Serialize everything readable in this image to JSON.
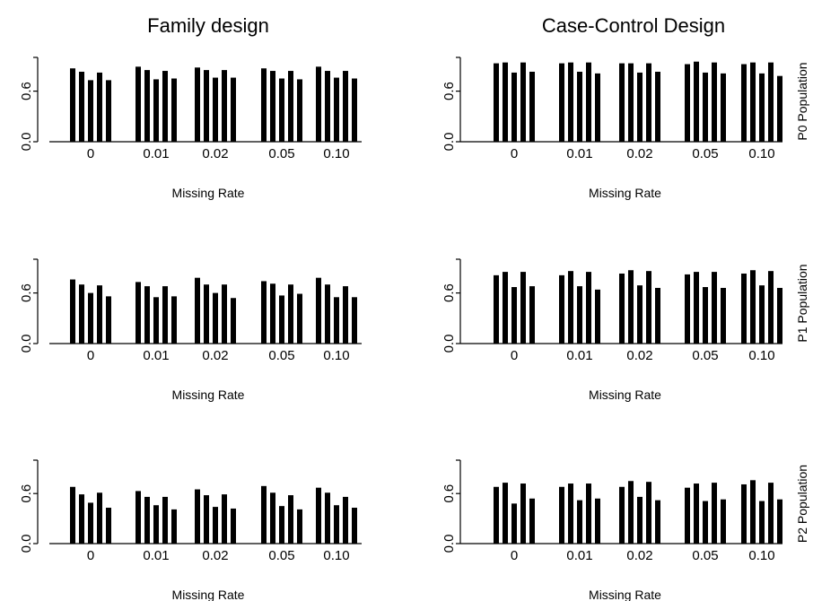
{
  "figure": {
    "col_titles": [
      "Family design",
      "Case-Control Design"
    ],
    "row_labels": [
      "P0 Population",
      "P1 Population",
      "P2 Population"
    ]
  },
  "chart_data": [
    {
      "type": "bar",
      "design": "Family design",
      "population": "P0 Population",
      "categories": [
        "0",
        "0.01",
        "0.02",
        "0.05",
        "0.10"
      ],
      "xlabel": "Missing Rate",
      "ylabel": "",
      "yticks": [
        "0.0",
        "0.6"
      ],
      "ylim": [
        0,
        1.0
      ],
      "values": [
        [
          0.87,
          0.83,
          0.73,
          0.82,
          0.73
        ],
        [
          0.89,
          0.85,
          0.74,
          0.84,
          0.75
        ],
        [
          0.88,
          0.85,
          0.76,
          0.85,
          0.76
        ],
        [
          0.87,
          0.84,
          0.75,
          0.84,
          0.74
        ],
        [
          0.89,
          0.84,
          0.76,
          0.84,
          0.75
        ]
      ]
    },
    {
      "type": "bar",
      "design": "Case-Control Design",
      "population": "P0 Population",
      "categories": [
        "0",
        "0.01",
        "0.02",
        "0.05",
        "0.10"
      ],
      "xlabel": "Missing Rate",
      "ylabel": "",
      "yticks": [
        "0.0",
        "0.6"
      ],
      "ylim": [
        0,
        1.0
      ],
      "values": [
        [
          0.93,
          0.94,
          0.82,
          0.94,
          0.83
        ],
        [
          0.93,
          0.94,
          0.83,
          0.94,
          0.81
        ],
        [
          0.93,
          0.93,
          0.82,
          0.93,
          0.83
        ],
        [
          0.92,
          0.95,
          0.82,
          0.94,
          0.81
        ],
        [
          0.92,
          0.94,
          0.81,
          0.94,
          0.78
        ]
      ]
    },
    {
      "type": "bar",
      "design": "Family design",
      "population": "P1 Population",
      "categories": [
        "0",
        "0.01",
        "0.02",
        "0.05",
        "0.10"
      ],
      "xlabel": "Missing Rate",
      "ylabel": "",
      "yticks": [
        "0.0",
        "0.6"
      ],
      "ylim": [
        0,
        1.0
      ],
      "values": [
        [
          0.76,
          0.7,
          0.6,
          0.69,
          0.56
        ],
        [
          0.73,
          0.68,
          0.55,
          0.68,
          0.56
        ],
        [
          0.78,
          0.7,
          0.6,
          0.7,
          0.54
        ],
        [
          0.74,
          0.71,
          0.57,
          0.7,
          0.59
        ],
        [
          0.78,
          0.7,
          0.55,
          0.68,
          0.55
        ]
      ]
    },
    {
      "type": "bar",
      "design": "Case-Control Design",
      "population": "P1 Population",
      "categories": [
        "0",
        "0.01",
        "0.02",
        "0.05",
        "0.10"
      ],
      "xlabel": "Missing Rate",
      "ylabel": "",
      "yticks": [
        "0.0",
        "0.6"
      ],
      "ylim": [
        0,
        1.0
      ],
      "values": [
        [
          0.81,
          0.85,
          0.67,
          0.85,
          0.68
        ],
        [
          0.81,
          0.86,
          0.68,
          0.85,
          0.64
        ],
        [
          0.83,
          0.87,
          0.69,
          0.86,
          0.66
        ],
        [
          0.82,
          0.85,
          0.67,
          0.85,
          0.66
        ],
        [
          0.83,
          0.87,
          0.69,
          0.86,
          0.66
        ]
      ]
    },
    {
      "type": "bar",
      "design": "Family design",
      "population": "P2 Population",
      "categories": [
        "0",
        "0.01",
        "0.02",
        "0.05",
        "0.10"
      ],
      "xlabel": "Missing Rate",
      "ylabel": "",
      "yticks": [
        "0.0",
        "0.6"
      ],
      "ylim": [
        0,
        1.0
      ],
      "values": [
        [
          0.68,
          0.59,
          0.49,
          0.61,
          0.43
        ],
        [
          0.63,
          0.56,
          0.46,
          0.56,
          0.41
        ],
        [
          0.65,
          0.58,
          0.44,
          0.59,
          0.42
        ],
        [
          0.69,
          0.61,
          0.45,
          0.58,
          0.41
        ],
        [
          0.67,
          0.61,
          0.46,
          0.56,
          0.43
        ]
      ]
    },
    {
      "type": "bar",
      "design": "Case-Control Design",
      "population": "P2 Population",
      "categories": [
        "0",
        "0.01",
        "0.02",
        "0.05",
        "0.10"
      ],
      "xlabel": "Missing Rate",
      "ylabel": "",
      "yticks": [
        "0.0",
        "0.6"
      ],
      "ylim": [
        0,
        1.0
      ],
      "values": [
        [
          0.68,
          0.73,
          0.48,
          0.72,
          0.54
        ],
        [
          0.68,
          0.72,
          0.52,
          0.72,
          0.54
        ],
        [
          0.68,
          0.75,
          0.56,
          0.74,
          0.52
        ],
        [
          0.67,
          0.72,
          0.51,
          0.73,
          0.53
        ],
        [
          0.71,
          0.76,
          0.51,
          0.73,
          0.53
        ]
      ]
    }
  ]
}
